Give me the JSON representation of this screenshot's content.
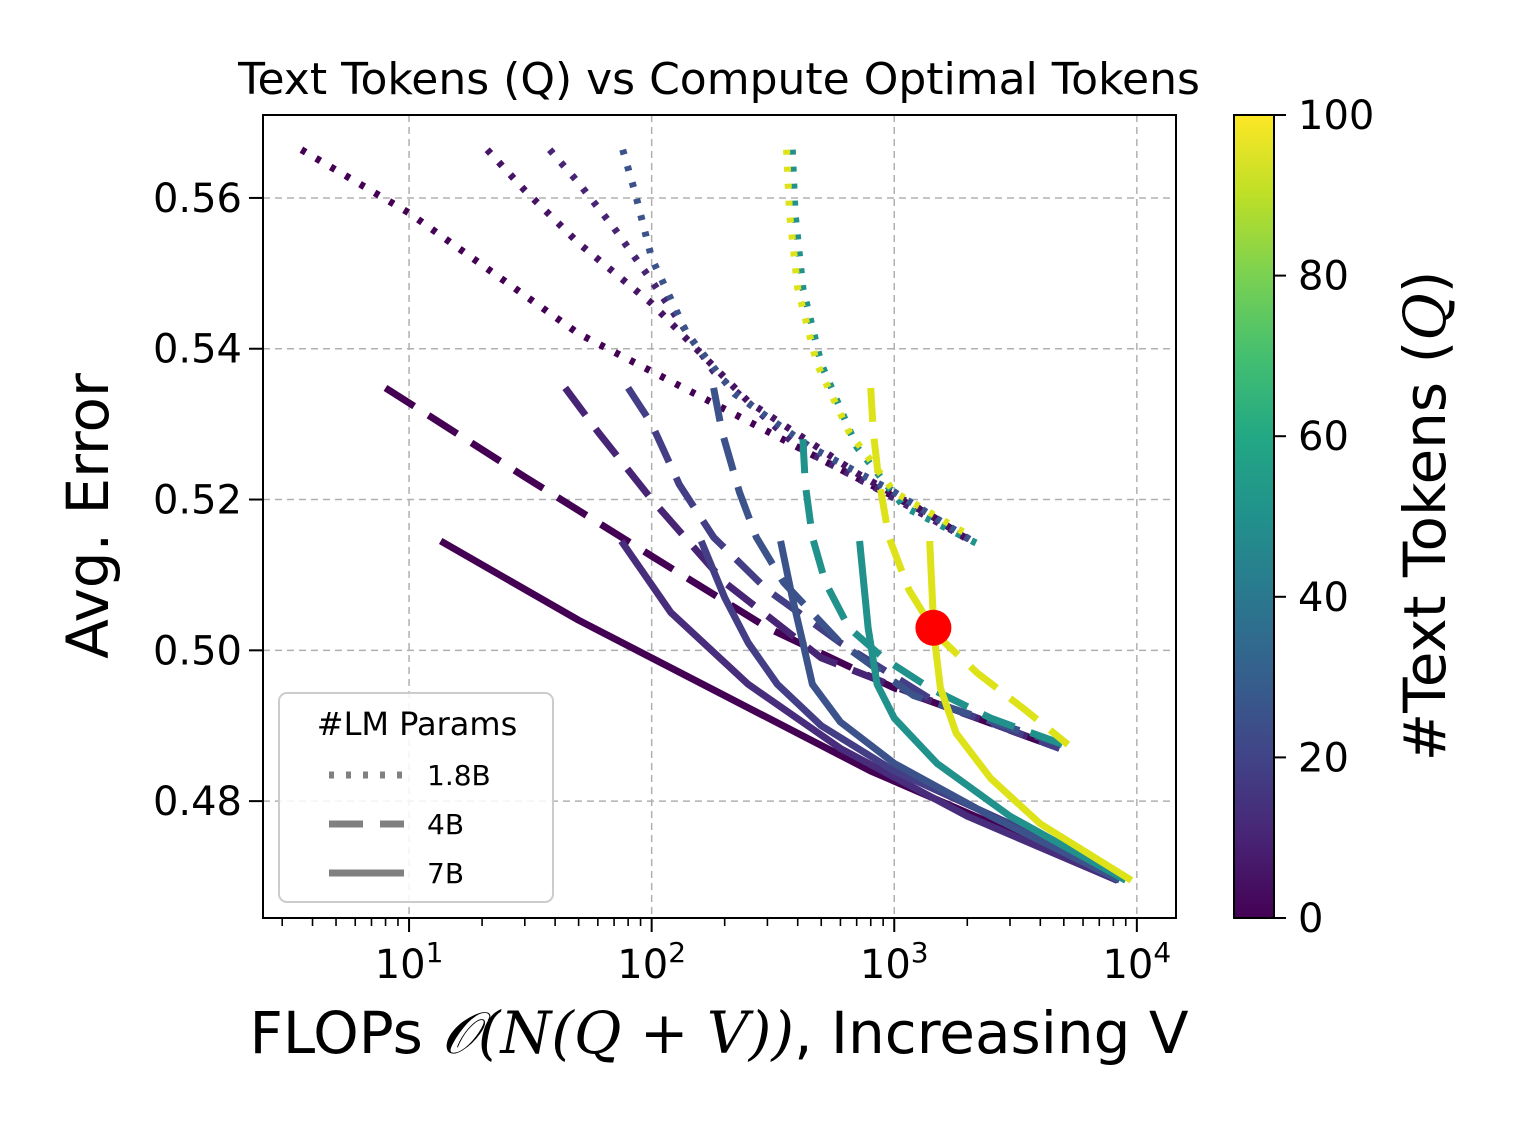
{
  "chart_data": {
    "type": "line",
    "title": "Text Tokens (Q) vs Compute Optimal Tokens",
    "xlabel_prefix": "FLOPs ",
    "xlabel_math": "𝒪(N(Q + V))",
    "xlabel_suffix": ", Increasing V",
    "ylabel": "Avg. Error",
    "xscale": "log",
    "xlim": [
      2.5,
      14500
    ],
    "ylim": [
      0.4645,
      0.571
    ],
    "grid": true,
    "x_ticks": [
      {
        "value": 10,
        "base": "10",
        "exp": "1"
      },
      {
        "value": 100,
        "base": "10",
        "exp": "2"
      },
      {
        "value": 1000,
        "base": "10",
        "exp": "3"
      },
      {
        "value": 10000,
        "base": "10",
        "exp": "4"
      }
    ],
    "y_ticks": [
      {
        "value": 0.48,
        "label": "0.48"
      },
      {
        "value": 0.5,
        "label": "0.50"
      },
      {
        "value": 0.52,
        "label": "0.52"
      },
      {
        "value": 0.54,
        "label": "0.54"
      },
      {
        "value": 0.56,
        "label": "0.56"
      }
    ],
    "colorbar": {
      "label": "#Text Tokens (Q)",
      "label_plain": "#Text Tokens (",
      "label_math": "Q",
      "label_close": ")",
      "min": 0,
      "max": 100,
      "ticks": [
        {
          "value": 0,
          "label": "0"
        },
        {
          "value": 20,
          "label": "20"
        },
        {
          "value": 40,
          "label": "40"
        },
        {
          "value": 60,
          "label": "60"
        },
        {
          "value": 80,
          "label": "80"
        },
        {
          "value": 100,
          "label": "100"
        }
      ]
    },
    "legend": {
      "title": "#LM Params",
      "position": "lower-left",
      "color": "#808080",
      "items": [
        {
          "label": "1.8B",
          "style": "dotted"
        },
        {
          "label": "4B",
          "style": "dashed"
        },
        {
          "label": "7B",
          "style": "solid"
        }
      ]
    },
    "highlight_point": {
      "x": 1450,
      "y": 0.503,
      "color": "#ff0000"
    },
    "series": [
      {
        "name": "1.8B Q=1",
        "params": "1.8B",
        "q": 1,
        "color": "#440154",
        "x": [
          3.6,
          10,
          50,
          200,
          600,
          1400,
          2050
        ],
        "y": [
          0.5664,
          0.558,
          0.542,
          0.532,
          0.524,
          0.518,
          0.5145
        ]
      },
      {
        "name": "1.8B Q=5",
        "params": "1.8B",
        "q": 5,
        "color": "#471365",
        "x": [
          21,
          30,
          50,
          100,
          250,
          700,
          1400,
          2050
        ],
        "y": [
          0.5664,
          0.561,
          0.554,
          0.546,
          0.533,
          0.5235,
          0.518,
          0.5145
        ]
      },
      {
        "name": "1.8B Q=10",
        "params": "1.8B",
        "q": 10,
        "color": "#482475",
        "x": [
          38,
          50,
          70,
          100,
          180,
          400,
          900,
          1600,
          2100
        ],
        "y": [
          0.5664,
          0.562,
          0.556,
          0.549,
          0.537,
          0.527,
          0.521,
          0.5165,
          0.5145
        ]
      },
      {
        "name": "1.8B Q=20",
        "params": "1.8B",
        "q": 20,
        "color": "#3b528b",
        "x": [
          76,
          85,
          100,
          140,
          220,
          450,
          1000,
          2100
        ],
        "y": [
          0.5664,
          0.561,
          0.552,
          0.542,
          0.534,
          0.527,
          0.521,
          0.5145
        ]
      },
      {
        "name": "1.8B Q=50",
        "params": "1.8B",
        "q": 50,
        "color": "#21918c",
        "x": [
          380,
          390,
          420,
          500,
          700,
          1100,
          2250
        ],
        "y": [
          0.5664,
          0.558,
          0.548,
          0.538,
          0.527,
          0.519,
          0.514
        ]
      },
      {
        "name": "1.8B Q=100",
        "params": "1.8B",
        "q": 100,
        "color": "#dde318",
        "x": [
          360,
          370,
          400,
          480,
          650,
          1000,
          2100
        ],
        "y": [
          0.5664,
          0.558,
          0.548,
          0.538,
          0.529,
          0.521,
          0.515
        ]
      },
      {
        "name": "4B Q=2",
        "params": "4B",
        "q": 2,
        "color": "#440154",
        "x": [
          8,
          30,
          100,
          300,
          1000,
          4800
        ],
        "y": [
          0.5348,
          0.523,
          0.5125,
          0.503,
          0.495,
          0.487
        ]
      },
      {
        "name": "4B Q=10",
        "params": "4B",
        "q": 10,
        "color": "#482475",
        "x": [
          44,
          60,
          100,
          200,
          500,
          1500,
          4800
        ],
        "y": [
          0.5348,
          0.529,
          0.52,
          0.509,
          0.499,
          0.493,
          0.487
        ]
      },
      {
        "name": "4B Q=15",
        "params": "4B",
        "q": 15,
        "color": "#433e85",
        "x": [
          80,
          100,
          130,
          180,
          300,
          600,
          1500,
          4800
        ],
        "y": [
          0.5348,
          0.53,
          0.522,
          0.515,
          0.508,
          0.501,
          0.493,
          0.487
        ]
      },
      {
        "name": "4B Q=25",
        "params": "4B",
        "q": 25,
        "color": "#3b528b",
        "x": [
          180,
          195,
          230,
          270,
          350,
          600,
          1200,
          4900
        ],
        "y": [
          0.5348,
          0.529,
          0.521,
          0.515,
          0.509,
          0.501,
          0.494,
          0.4875
        ]
      },
      {
        "name": "4B Q=50",
        "params": "4B",
        "q": 50,
        "color": "#21918c",
        "x": [
          420,
          430,
          460,
          520,
          650,
          900,
          1400,
          2500,
          5000
        ],
        "y": [
          0.528,
          0.522,
          0.515,
          0.509,
          0.503,
          0.499,
          0.495,
          0.491,
          0.4875
        ]
      },
      {
        "name": "4B Q=100",
        "params": "4B",
        "q": 100,
        "color": "#dde318",
        "x": [
          800,
          820,
          860,
          950,
          1150,
          1500,
          2200,
          3500,
          5200
        ],
        "y": [
          0.5348,
          0.529,
          0.523,
          0.515,
          0.508,
          0.502,
          0.497,
          0.492,
          0.4875
        ]
      },
      {
        "name": "7B Q=2",
        "params": "7B",
        "q": 2,
        "color": "#440154",
        "x": [
          13.5,
          50,
          200,
          800,
          3000,
          8300
        ],
        "y": [
          0.5145,
          0.504,
          0.494,
          0.484,
          0.476,
          0.4695
        ]
      },
      {
        "name": "7B Q=10",
        "params": "7B",
        "q": 10,
        "color": "#472d7b",
        "x": [
          75,
          120,
          250,
          600,
          2000,
          8300
        ],
        "y": [
          0.5145,
          0.505,
          0.4955,
          0.487,
          0.478,
          0.4695
        ]
      },
      {
        "name": "7B Q=15",
        "params": "7B",
        "q": 15,
        "color": "#433e85",
        "x": [
          160,
          200,
          250,
          330,
          500,
          1000,
          3000,
          8400
        ],
        "y": [
          0.5145,
          0.507,
          0.501,
          0.4955,
          0.49,
          0.484,
          0.477,
          0.4695
        ]
      },
      {
        "name": "7B Q=25",
        "params": "7B",
        "q": 25,
        "color": "#3b528b",
        "x": [
          340,
          380,
          420,
          460,
          600,
          1000,
          2500,
          8500
        ],
        "y": [
          0.5145,
          0.507,
          0.501,
          0.4955,
          0.4905,
          0.485,
          0.478,
          0.4695
        ]
      },
      {
        "name": "7B Q=50",
        "params": "7B",
        "q": 50,
        "color": "#21918c",
        "x": [
          720,
          780,
          850,
          1000,
          1500,
          3000,
          9000
        ],
        "y": [
          0.5145,
          0.503,
          0.4955,
          0.491,
          0.485,
          0.478,
          0.4695
        ]
      },
      {
        "name": "7B Q=100",
        "params": "7B",
        "q": 100,
        "color": "#dde318",
        "x": [
          1400,
          1460,
          1550,
          1800,
          2500,
          4000,
          9500
        ],
        "y": [
          0.5145,
          0.502,
          0.495,
          0.489,
          0.483,
          0.477,
          0.4695
        ]
      }
    ]
  }
}
